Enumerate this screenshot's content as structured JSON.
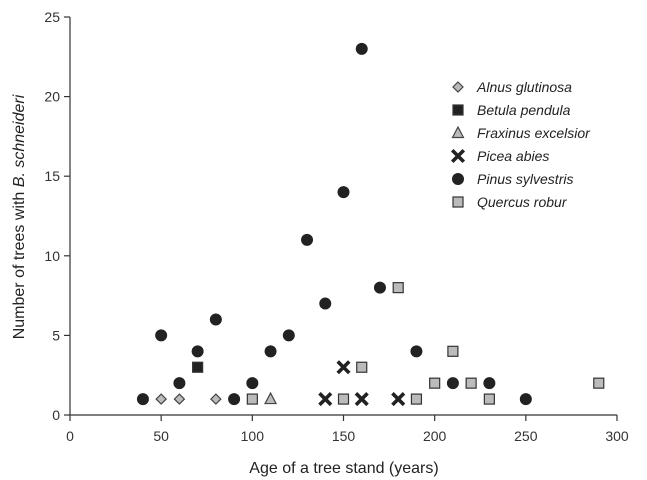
{
  "chart_data": {
    "type": "scatter",
    "xlabel": "Age of a tree stand (years)",
    "ylabel_prefix": "Number of trees with ",
    "ylabel_italic": "B. schneideri",
    "xlim": [
      0,
      300
    ],
    "ylim": [
      0,
      25
    ],
    "x_ticks": [
      0,
      50,
      100,
      150,
      200,
      250,
      300
    ],
    "y_ticks": [
      0,
      5,
      10,
      15,
      20,
      25
    ],
    "grid": false,
    "legend_position": "top-right",
    "series": [
      {
        "name": "Alnus glutinosa",
        "marker": "diamond",
        "color": "#bbbbbb",
        "points": [
          [
            50,
            1
          ],
          [
            60,
            1
          ],
          [
            80,
            1
          ]
        ]
      },
      {
        "name": "Betula pendula",
        "marker": "square",
        "color": "#222222",
        "points": [
          [
            70,
            3
          ]
        ]
      },
      {
        "name": "Fraxinus excelsior",
        "marker": "triangle",
        "color": "#bbbbbb",
        "points": [
          [
            110,
            1
          ]
        ]
      },
      {
        "name": "Picea abies",
        "marker": "x",
        "color": "#222222",
        "points": [
          [
            140,
            1
          ],
          [
            150,
            3
          ],
          [
            160,
            1
          ],
          [
            180,
            1
          ]
        ]
      },
      {
        "name": "Pinus sylvestris",
        "marker": "circle",
        "color": "#222222",
        "points": [
          [
            40,
            1
          ],
          [
            50,
            5
          ],
          [
            60,
            2
          ],
          [
            70,
            4
          ],
          [
            80,
            6
          ],
          [
            90,
            1
          ],
          [
            100,
            2
          ],
          [
            110,
            4
          ],
          [
            120,
            5
          ],
          [
            130,
            11
          ],
          [
            140,
            7
          ],
          [
            150,
            14
          ],
          [
            160,
            23
          ],
          [
            170,
            8
          ],
          [
            190,
            4
          ],
          [
            210,
            2
          ],
          [
            230,
            2
          ],
          [
            250,
            1
          ]
        ]
      },
      {
        "name": "Quercus robur",
        "marker": "square",
        "color": "#bbbbbb",
        "points": [
          [
            100,
            1
          ],
          [
            150,
            1
          ],
          [
            160,
            3
          ],
          [
            180,
            8
          ],
          [
            190,
            1
          ],
          [
            200,
            2
          ],
          [
            210,
            4
          ],
          [
            220,
            2
          ],
          [
            230,
            1
          ],
          [
            290,
            2
          ]
        ]
      }
    ]
  }
}
